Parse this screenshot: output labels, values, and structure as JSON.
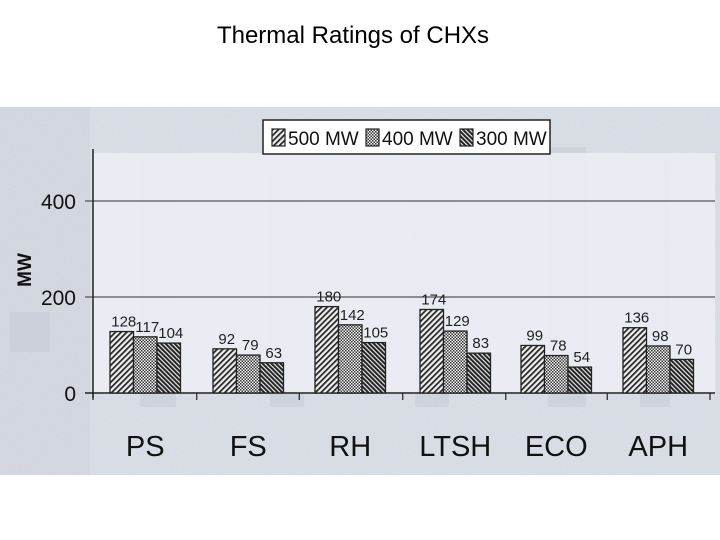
{
  "slide": {
    "title": "Thermal Ratings  of  CHXs"
  },
  "chart_data": {
    "type": "bar",
    "title": "",
    "xlabel": "",
    "ylabel": "MW",
    "ylim": [
      0,
      480
    ],
    "yticks": [
      0,
      200,
      400
    ],
    "grid": "horizontal",
    "legend_position": "top",
    "categories": [
      "PS",
      "FS",
      "RH",
      "LTSH",
      "ECO",
      "APH"
    ],
    "series": [
      {
        "name": "500 MW",
        "values": [
          128,
          92,
          180,
          174,
          99,
          136
        ]
      },
      {
        "name": "400 MW",
        "values": [
          117,
          79,
          142,
          129,
          78,
          98
        ]
      },
      {
        "name": "300 MW",
        "values": [
          104,
          63,
          105,
          83,
          54,
          70
        ]
      }
    ]
  }
}
